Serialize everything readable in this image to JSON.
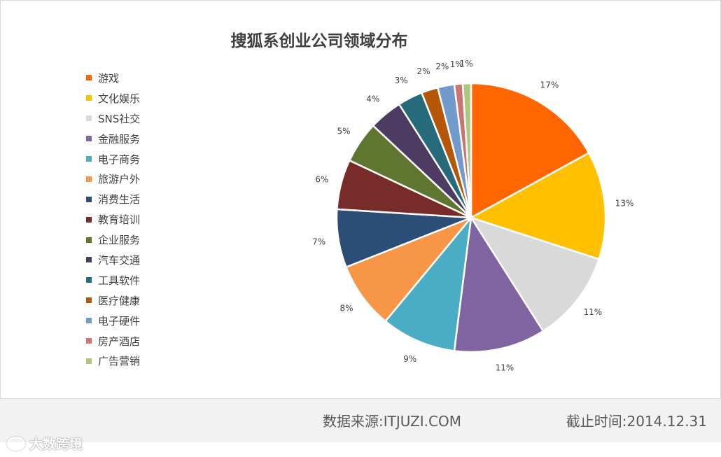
{
  "chart_data": {
    "type": "pie",
    "title": "搜狐系创业公司领域分布",
    "legend_position": "left",
    "slices": [
      {
        "label": "游戏",
        "value": 17,
        "display": "17%",
        "color": "#ff6600"
      },
      {
        "label": "文化娱乐",
        "value": 13,
        "display": "13%",
        "color": "#ffc000"
      },
      {
        "label": "SNS社交",
        "value": 11,
        "display": "11%",
        "color": "#d9d9d9"
      },
      {
        "label": "金融服务",
        "value": 11,
        "display": "11%",
        "color": "#8064a2"
      },
      {
        "label": "电子商务",
        "value": 9,
        "display": "9%",
        "color": "#4bacc6"
      },
      {
        "label": "旅游户外",
        "value": 8,
        "display": "8%",
        "color": "#f79646"
      },
      {
        "label": "消费生活",
        "value": 7,
        "display": "7%",
        "color": "#2c4d75"
      },
      {
        "label": "教育培训",
        "value": 6,
        "display": "6%",
        "color": "#772c2a"
      },
      {
        "label": "企业服务",
        "value": 5,
        "display": "5%",
        "color": "#5f7530"
      },
      {
        "label": "汽车交通",
        "value": 4,
        "display": "4%",
        "color": "#4d3b62"
      },
      {
        "label": "工具软件",
        "value": 3,
        "display": "3%",
        "color": "#276a7c"
      },
      {
        "label": "医疗健康",
        "value": 2,
        "display": "2%",
        "color": "#b65708"
      },
      {
        "label": "电子硬件",
        "value": 2,
        "display": "2%",
        "color": "#729aca"
      },
      {
        "label": "房产酒店",
        "value": 1,
        "display": "1%",
        "color": "#cd7371"
      },
      {
        "label": "广告营销",
        "value": 1,
        "display": "1%",
        "color": "#afc97a"
      }
    ]
  },
  "footer": {
    "source": "数据来源:ITJUZI.COM",
    "cutoff": "截止时间:2014.12.31"
  },
  "watermark": {
    "text": "大数跨境"
  }
}
